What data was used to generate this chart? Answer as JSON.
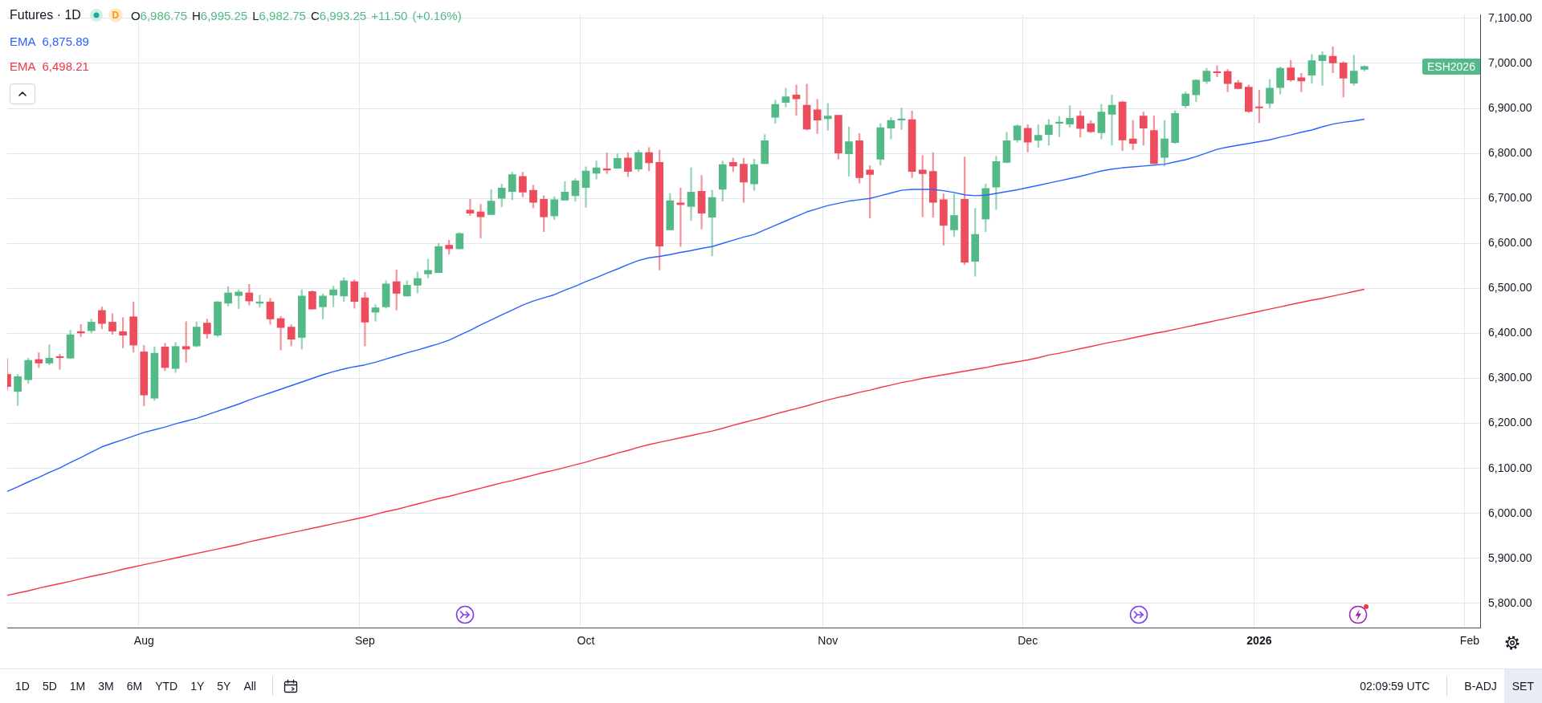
{
  "chart_data": {
    "type": "candlestick",
    "title": "Futures · 1D",
    "categories": [
      null,
      null,
      null,
      null,
      null,
      null,
      null,
      null,
      null,
      null,
      null,
      null,
      null,
      "Aug",
      null,
      null,
      null,
      null,
      null,
      null,
      null,
      null,
      null,
      null,
      null,
      null,
      null,
      null,
      null,
      null,
      null,
      null,
      null,
      null,
      "Sep",
      null,
      null,
      null,
      null,
      null,
      null,
      null,
      null,
      null,
      null,
      null,
      null,
      null,
      null,
      null,
      null,
      null,
      null,
      null,
      null,
      "Oct",
      null,
      null,
      null,
      null,
      null,
      null,
      null,
      null,
      null,
      null,
      null,
      null,
      null,
      null,
      null,
      null,
      null,
      null,
      null,
      null,
      null,
      null,
      "Nov",
      null,
      null,
      null,
      null,
      null,
      null,
      null,
      null,
      null,
      null,
      null,
      null,
      null,
      null,
      null,
      null,
      null,
      null,
      "Dec",
      null,
      null,
      null,
      null,
      null,
      null,
      null,
      null,
      null,
      null,
      null,
      null,
      null,
      null,
      null,
      null,
      null,
      null,
      null,
      null,
      null,
      "2026",
      null,
      null,
      null,
      null,
      null,
      null,
      null,
      null,
      null,
      null,
      null,
      null,
      null,
      null,
      null,
      null,
      null,
      null,
      null,
      "Feb",
      null
    ],
    "ohlc": [
      [
        6309,
        6344,
        6274,
        6282
      ],
      [
        6271,
        6309,
        6240,
        6304
      ],
      [
        6297,
        6345,
        6289,
        6340
      ],
      [
        6342,
        6357,
        6324,
        6334
      ],
      [
        6334,
        6375,
        6330,
        6345
      ],
      [
        6347,
        6354,
        6320,
        6346
      ],
      [
        6345,
        6407,
        6344,
        6397
      ],
      [
        6404,
        6420,
        6393,
        6401
      ],
      [
        6406,
        6432,
        6401,
        6425
      ],
      [
        6451,
        6459,
        6410,
        6422
      ],
      [
        6425,
        6444,
        6398,
        6405
      ],
      [
        6404,
        6435,
        6368,
        6396
      ],
      [
        6437,
        6470,
        6358,
        6374
      ],
      [
        6359,
        6373,
        6239,
        6263
      ],
      [
        6256,
        6370,
        6251,
        6356
      ],
      [
        6370,
        6378,
        6317,
        6324
      ],
      [
        6322,
        6380,
        6313,
        6371
      ],
      [
        6371,
        6426,
        6336,
        6365
      ],
      [
        6372,
        6426,
        6370,
        6414
      ],
      [
        6423,
        6432,
        6389,
        6399
      ],
      [
        6396,
        6471,
        6393,
        6470
      ],
      [
        6467,
        6504,
        6461,
        6490
      ],
      [
        6484,
        6497,
        6455,
        6492
      ],
      [
        6490,
        6509,
        6463,
        6472
      ],
      [
        6467,
        6485,
        6458,
        6470
      ],
      [
        6470,
        6478,
        6420,
        6432
      ],
      [
        6433,
        6438,
        6363,
        6413
      ],
      [
        6414,
        6419,
        6372,
        6387
      ],
      [
        6391,
        6497,
        6365,
        6483
      ],
      [
        6493,
        6495,
        6454,
        6454
      ],
      [
        6459,
        6488,
        6432,
        6483
      ],
      [
        6485,
        6505,
        6459,
        6497
      ],
      [
        6483,
        6524,
        6471,
        6517
      ],
      [
        6515,
        6519,
        6456,
        6471
      ],
      [
        6479,
        6491,
        6372,
        6425
      ],
      [
        6447,
        6464,
        6427,
        6457
      ],
      [
        6459,
        6517,
        6456,
        6510
      ],
      [
        6515,
        6541,
        6452,
        6489
      ],
      [
        6483,
        6517,
        6483,
        6507
      ],
      [
        6507,
        6536,
        6490,
        6522
      ],
      [
        6532,
        6565,
        6523,
        6540
      ],
      [
        6535,
        6600,
        6535,
        6593
      ],
      [
        6596,
        6607,
        6576,
        6588
      ],
      [
        6588,
        6624,
        6587,
        6622
      ],
      [
        6674,
        6698,
        6662,
        6667
      ],
      [
        6670,
        6687,
        6612,
        6659
      ],
      [
        6664,
        6720,
        6664,
        6694
      ],
      [
        6700,
        6732,
        6681,
        6723
      ],
      [
        6715,
        6758,
        6697,
        6753
      ],
      [
        6749,
        6758,
        6703,
        6714
      ],
      [
        6718,
        6729,
        6679,
        6691
      ],
      [
        6698,
        6706,
        6626,
        6659
      ],
      [
        6661,
        6704,
        6653,
        6697
      ],
      [
        6696,
        6737,
        6696,
        6714
      ],
      [
        6706,
        6744,
        6694,
        6739
      ],
      [
        6724,
        6770,
        6680,
        6761
      ],
      [
        6756,
        6783,
        6743,
        6768
      ],
      [
        6765,
        6801,
        6755,
        6763
      ],
      [
        6767,
        6799,
        6767,
        6789
      ],
      [
        6790,
        6802,
        6748,
        6760
      ],
      [
        6765,
        6807,
        6760,
        6802
      ],
      [
        6802,
        6813,
        6761,
        6779
      ],
      [
        6780,
        6807,
        6541,
        6594
      ],
      [
        6630,
        6711,
        6630,
        6695
      ],
      [
        6690,
        6723,
        6593,
        6686
      ],
      [
        6682,
        6768,
        6651,
        6714
      ],
      [
        6716,
        6751,
        6632,
        6667
      ],
      [
        6658,
        6718,
        6572,
        6702
      ],
      [
        6720,
        6783,
        6694,
        6775
      ],
      [
        6780,
        6790,
        6760,
        6772
      ],
      [
        6776,
        6789,
        6691,
        6736
      ],
      [
        6732,
        6787,
        6718,
        6775
      ],
      [
        6777,
        6842,
        6777,
        6828
      ],
      [
        6880,
        6918,
        6867,
        6909
      ],
      [
        6913,
        6945,
        6903,
        6926
      ],
      [
        6930,
        6952,
        6884,
        6921
      ],
      [
        6907,
        6954,
        6852,
        6854
      ],
      [
        6897,
        6920,
        6844,
        6874
      ],
      [
        6877,
        6911,
        6851,
        6883
      ],
      [
        6885,
        6885,
        6787,
        6801
      ],
      [
        6799,
        6859,
        6749,
        6826
      ],
      [
        6828,
        6844,
        6734,
        6746
      ],
      [
        6763,
        6773,
        6656,
        6753
      ],
      [
        6787,
        6866,
        6774,
        6857
      ],
      [
        6856,
        6880,
        6832,
        6873
      ],
      [
        6874,
        6901,
        6853,
        6876
      ],
      [
        6875,
        6894,
        6746,
        6760
      ],
      [
        6763,
        6795,
        6659,
        6755
      ],
      [
        6760,
        6802,
        6658,
        6691
      ],
      [
        6697,
        6710,
        6596,
        6640
      ],
      [
        6630,
        6710,
        6615,
        6662
      ],
      [
        6698,
        6792,
        6553,
        6558
      ],
      [
        6560,
        6678,
        6527,
        6620
      ],
      [
        6654,
        6732,
        6626,
        6722
      ],
      [
        6725,
        6794,
        6675,
        6782
      ],
      [
        6780,
        6847,
        6779,
        6828
      ],
      [
        6830,
        6864,
        6825,
        6861
      ],
      [
        6856,
        6864,
        6803,
        6825
      ],
      [
        6829,
        6864,
        6813,
        6840
      ],
      [
        6842,
        6875,
        6818,
        6863
      ],
      [
        6867,
        6882,
        6837,
        6868
      ],
      [
        6865,
        6906,
        6858,
        6878
      ],
      [
        6883,
        6894,
        6836,
        6855
      ],
      [
        6866,
        6873,
        6846,
        6848
      ],
      [
        6846,
        6909,
        6832,
        6892
      ],
      [
        6887,
        6930,
        6818,
        6907
      ],
      [
        6914,
        6916,
        6806,
        6830
      ],
      [
        6832,
        6873,
        6808,
        6822
      ],
      [
        6883,
        6892,
        6818,
        6856
      ],
      [
        6851,
        6883,
        6777,
        6777
      ],
      [
        6791,
        6873,
        6772,
        6832
      ],
      [
        6824,
        6895,
        6822,
        6889
      ],
      [
        6906,
        6937,
        6901,
        6932
      ],
      [
        6930,
        6964,
        6915,
        6963
      ],
      [
        6960,
        6989,
        6955,
        6983
      ],
      [
        6980,
        6995,
        6970,
        6979
      ],
      [
        6982,
        6987,
        6937,
        6955
      ],
      [
        6957,
        6963,
        6943,
        6944
      ],
      [
        6947,
        6952,
        6891,
        6893
      ],
      [
        6903,
        6940,
        6868,
        6901
      ],
      [
        6911,
        6964,
        6901,
        6945
      ],
      [
        6946,
        6992,
        6932,
        6989
      ],
      [
        6990,
        7007,
        6960,
        6963
      ],
      [
        6968,
        6978,
        6937,
        6961
      ],
      [
        6974,
        7020,
        6956,
        7006
      ],
      [
        7006,
        7026,
        6951,
        7018
      ],
      [
        7016,
        7037,
        6979,
        7001
      ],
      [
        7001,
        7004,
        6925,
        6967
      ],
      [
        6956,
        7018,
        6951,
        6983
      ],
      [
        6986.75,
        6995.25,
        6982.75,
        6993.25
      ],
      null,
      null,
      null,
      null,
      null,
      null,
      null,
      null,
      null,
      null,
      null
    ],
    "colors": [
      "#ec4c5c",
      "#53b987",
      "#53b987",
      "#ec4c5c",
      "#53b987",
      "#ec4c5c",
      "#53b987",
      "#ec4c5c",
      "#53b987",
      "#ec4c5c",
      "#ec4c5c",
      "#ec4c5c",
      "#ec4c5c",
      "#ec4c5c",
      "#53b987",
      "#ec4c5c",
      "#53b987",
      "#ec4c5c",
      "#53b987",
      "#ec4c5c",
      "#53b987",
      "#53b987",
      "#53b987",
      "#ec4c5c",
      "#53b987",
      "#ec4c5c",
      "#ec4c5c",
      "#ec4c5c",
      "#53b987",
      "#ec4c5c",
      "#53b987",
      "#53b987",
      "#53b987",
      "#ec4c5c",
      "#ec4c5c",
      "#53b987",
      "#53b987",
      "#ec4c5c",
      "#53b987",
      "#53b987",
      "#53b987",
      "#53b987",
      "#ec4c5c",
      "#53b987",
      "#ec4c5c",
      "#ec4c5c",
      "#53b987",
      "#53b987",
      "#53b987",
      "#ec4c5c",
      "#ec4c5c",
      "#ec4c5c",
      "#53b987",
      "#53b987",
      "#53b987",
      "#53b987",
      "#53b987",
      "#ec4c5c",
      "#53b987",
      "#ec4c5c",
      "#53b987",
      "#ec4c5c",
      "#ec4c5c",
      "#53b987",
      "#ec4c5c",
      "#53b987",
      "#ec4c5c",
      "#53b987",
      "#53b987",
      "#ec4c5c",
      "#ec4c5c",
      "#53b987",
      "#53b987",
      "#53b987",
      "#53b987",
      "#ec4c5c",
      "#ec4c5c",
      "#ec4c5c",
      "#53b987",
      "#ec4c5c",
      "#53b987",
      "#ec4c5c",
      "#ec4c5c",
      "#53b987",
      "#53b987",
      "#53b987",
      "#ec4c5c",
      "#ec4c5c",
      "#ec4c5c",
      "#ec4c5c",
      "#53b987",
      "#ec4c5c",
      "#53b987",
      "#53b987",
      "#53b987",
      "#53b987",
      "#53b987",
      "#ec4c5c",
      "#53b987",
      "#53b987",
      "#53b987",
      "#53b987",
      "#ec4c5c",
      "#ec4c5c",
      "#53b987",
      "#53b987",
      "#ec4c5c",
      "#ec4c5c",
      "#ec4c5c",
      "#ec4c5c",
      "#53b987",
      "#53b987",
      "#53b987",
      "#53b987",
      "#53b987",
      "#ec4c5c",
      "#ec4c5c",
      "#ec4c5c",
      "#ec4c5c",
      "#ec4c5c",
      "#53b987",
      "#53b987",
      "#ec4c5c",
      "#ec4c5c",
      "#53b987",
      "#53b987",
      "#ec4c5c",
      "#ec4c5c",
      "#53b987",
      "#53b987",
      null,
      null,
      null,
      null,
      null,
      null,
      null,
      null,
      null,
      null,
      null
    ],
    "series": [
      {
        "name": "EMA",
        "type": "line",
        "color": "#2962ff",
        "values": [
          6049,
          6059,
          6070,
          6080,
          6091,
          6101,
          6113,
          6124,
          6136,
          6148,
          6156,
          6164,
          6172,
          6180,
          6186,
          6192,
          6199,
          6205,
          6211,
          6219,
          6227,
          6235,
          6243,
          6252,
          6260,
          6268,
          6276,
          6284,
          6292,
          6300,
          6308,
          6315,
          6321,
          6326,
          6330,
          6336,
          6343,
          6350,
          6357,
          6363,
          6370,
          6377,
          6385,
          6396,
          6407,
          6419,
          6430,
          6441,
          6452,
          6463,
          6472,
          6479,
          6486,
          6496,
          6505,
          6515,
          6524,
          6534,
          6543,
          6553,
          6562,
          6568,
          6571,
          6575,
          6580,
          6584,
          6589,
          6593,
          6600,
          6607,
          6614,
          6620,
          6630,
          6640,
          6650,
          6660,
          6670,
          6677,
          6684,
          6689,
          6694,
          6697,
          6700,
          6706,
          6712,
          6718,
          6720,
          6720,
          6720,
          6717,
          6713,
          6708,
          6706,
          6707,
          6711,
          6715,
          6719,
          6724,
          6729,
          6734,
          6739,
          6744,
          6749,
          6755,
          6761,
          6765,
          6768,
          6770,
          6772,
          6774,
          6776,
          6781,
          6786,
          6793,
          6801,
          6809,
          6814,
          6818,
          6822,
          6826,
          6830,
          6836,
          6841,
          6847,
          6852,
          6859,
          6865,
          6869,
          6872,
          6876,
          null,
          null,
          null,
          null,
          null,
          null,
          null,
          null,
          null,
          null,
          null
        ]
      },
      {
        "name": "EMA",
        "type": "line",
        "color": "#f23645",
        "values": [
          5818,
          5823,
          5828,
          5834,
          5839,
          5844,
          5849,
          5855,
          5860,
          5865,
          5870,
          5876,
          5881,
          5886,
          5891,
          5896,
          5901,
          5906,
          5911,
          5916,
          5921,
          5926,
          5931,
          5937,
          5942,
          5947,
          5952,
          5957,
          5962,
          5967,
          5972,
          5977,
          5982,
          5987,
          5992,
          5998,
          6004,
          6009,
          6015,
          6021,
          6027,
          6033,
          6038,
          6044,
          6050,
          6056,
          6062,
          6068,
          6073,
          6079,
          6085,
          6091,
          6096,
          6102,
          6108,
          6114,
          6121,
          6127,
          6134,
          6140,
          6147,
          6153,
          6158,
          6163,
          6168,
          6173,
          6178,
          6183,
          6189,
          6196,
          6202,
          6208,
          6214,
          6221,
          6227,
          6233,
          6239,
          6246,
          6252,
          6258,
          6263,
          6269,
          6274,
          6280,
          6285,
          6291,
          6295,
          6300,
          6304,
          6308,
          6312,
          6316,
          6320,
          6324,
          6329,
          6333,
          6337,
          6341,
          6346,
          6352,
          6356,
          6361,
          6366,
          6371,
          6376,
          6381,
          6385,
          6390,
          6395,
          6400,
          6404,
          6409,
          6414,
          6419,
          6424,
          6429,
          6434,
          6439,
          6444,
          6449,
          6454,
          6459,
          6464,
          6469,
          6474,
          6478,
          6483,
          6488,
          6493,
          6498,
          null,
          null,
          null,
          null,
          null,
          null,
          null,
          null,
          null,
          null,
          null
        ]
      }
    ],
    "ylim": [
      5746,
      7108
    ],
    "yticks": [
      {
        "value": 5800,
        "label": "5,800.00"
      },
      {
        "value": 5900,
        "label": "5,900.00"
      },
      {
        "value": 6000,
        "label": "6,000.00"
      },
      {
        "value": 6100,
        "label": "6,100.00"
      },
      {
        "value": 6200,
        "label": "6,200.00"
      },
      {
        "value": 6300,
        "label": "6,300.00"
      },
      {
        "value": 6400,
        "label": "6,400.00"
      },
      {
        "value": 6500,
        "label": "6,500.00"
      },
      {
        "value": 6600,
        "label": "6,600.00"
      },
      {
        "value": 6700,
        "label": "6,700.00"
      },
      {
        "value": 6800,
        "label": "6,800.00"
      },
      {
        "value": 6900,
        "label": "6,900.00"
      },
      {
        "value": 7000,
        "label": "7,000.00"
      },
      {
        "value": 7100,
        "label": "7,100.00"
      }
    ],
    "grid": true,
    "legend": "top left",
    "marker": "none",
    "annotations": [
      "D",
      "O6,986.75 H6,995.25 L6,982.75 C6,993.25 +11.50 (+0.16%)",
      "6,875.89",
      "6,498.21",
      "ESH2026",
      "1D",
      "5D",
      "1M",
      "3M",
      "6M",
      "YTD",
      "1Y",
      "5Y",
      "All",
      "02:09:59 UTC",
      "B-ADJ",
      "SET"
    ]
  }
}
